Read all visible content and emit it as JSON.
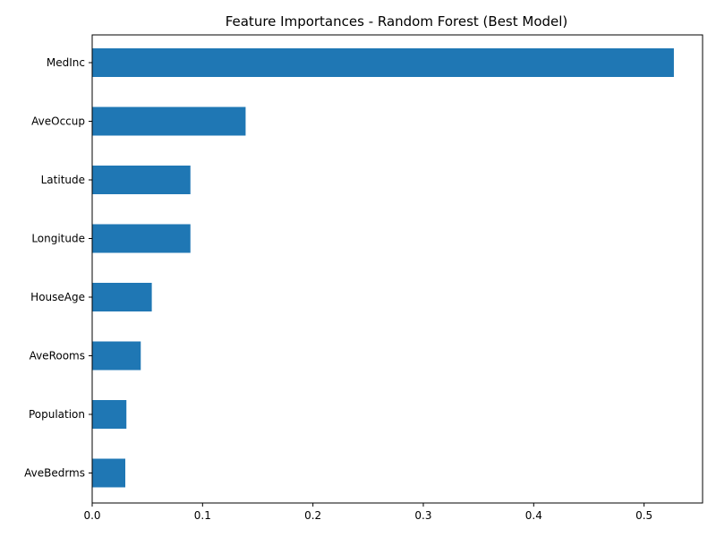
{
  "chart_data": {
    "type": "bar",
    "orientation": "horizontal",
    "title": "Feature Importances - Random Forest (Best Model)",
    "xlabel": "",
    "ylabel": "",
    "categories": [
      "MedInc",
      "AveOccup",
      "Latitude",
      "Longitude",
      "HouseAge",
      "AveRooms",
      "Population",
      "AveBedrms"
    ],
    "values": [
      0.527,
      0.139,
      0.089,
      0.089,
      0.054,
      0.044,
      0.031,
      0.03
    ],
    "xlim": [
      0,
      0.553
    ],
    "xticks": [
      0.0,
      0.1,
      0.2,
      0.3,
      0.4,
      0.5
    ],
    "xtick_labels": [
      "0.0",
      "0.1",
      "0.2",
      "0.3",
      "0.4",
      "0.5"
    ],
    "grid": false,
    "legend": "none",
    "bar_color": "#1f77b4"
  }
}
